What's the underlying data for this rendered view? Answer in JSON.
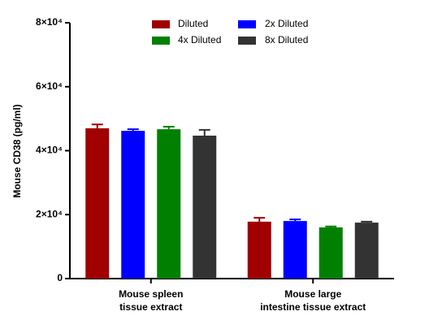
{
  "chart_data": {
    "type": "bar",
    "ylabel": "Mouse CD38 (pg/ml)",
    "categories": [
      "Mouse spleen\ntissue extract",
      "Mouse large\nintestine tissue extract"
    ],
    "series": [
      {
        "name": "Diluted",
        "color": "#a00000",
        "values": [
          47000,
          17800
        ],
        "errors": [
          1200,
          1200
        ]
      },
      {
        "name": "2x Diluted",
        "color": "#0000ff",
        "values": [
          46200,
          18000
        ],
        "errors": [
          500,
          500
        ]
      },
      {
        "name": "4x Diluted",
        "color": "#008000",
        "values": [
          46700,
          16000
        ],
        "errors": [
          800,
          300
        ]
      },
      {
        "name": "8x Diluted",
        "color": "#333333",
        "values": [
          44700,
          17500
        ],
        "errors": [
          1800,
          300
        ]
      }
    ],
    "ylim": [
      0,
      80000
    ],
    "yticks": [
      0,
      {
        "value": 20000,
        "label": "2×10⁴"
      },
      {
        "value": 40000,
        "label": "4×10⁴"
      },
      {
        "value": 60000,
        "label": "6×10⁴"
      },
      {
        "value": 80000,
        "label": "8×10⁴"
      }
    ],
    "legend": "top"
  }
}
